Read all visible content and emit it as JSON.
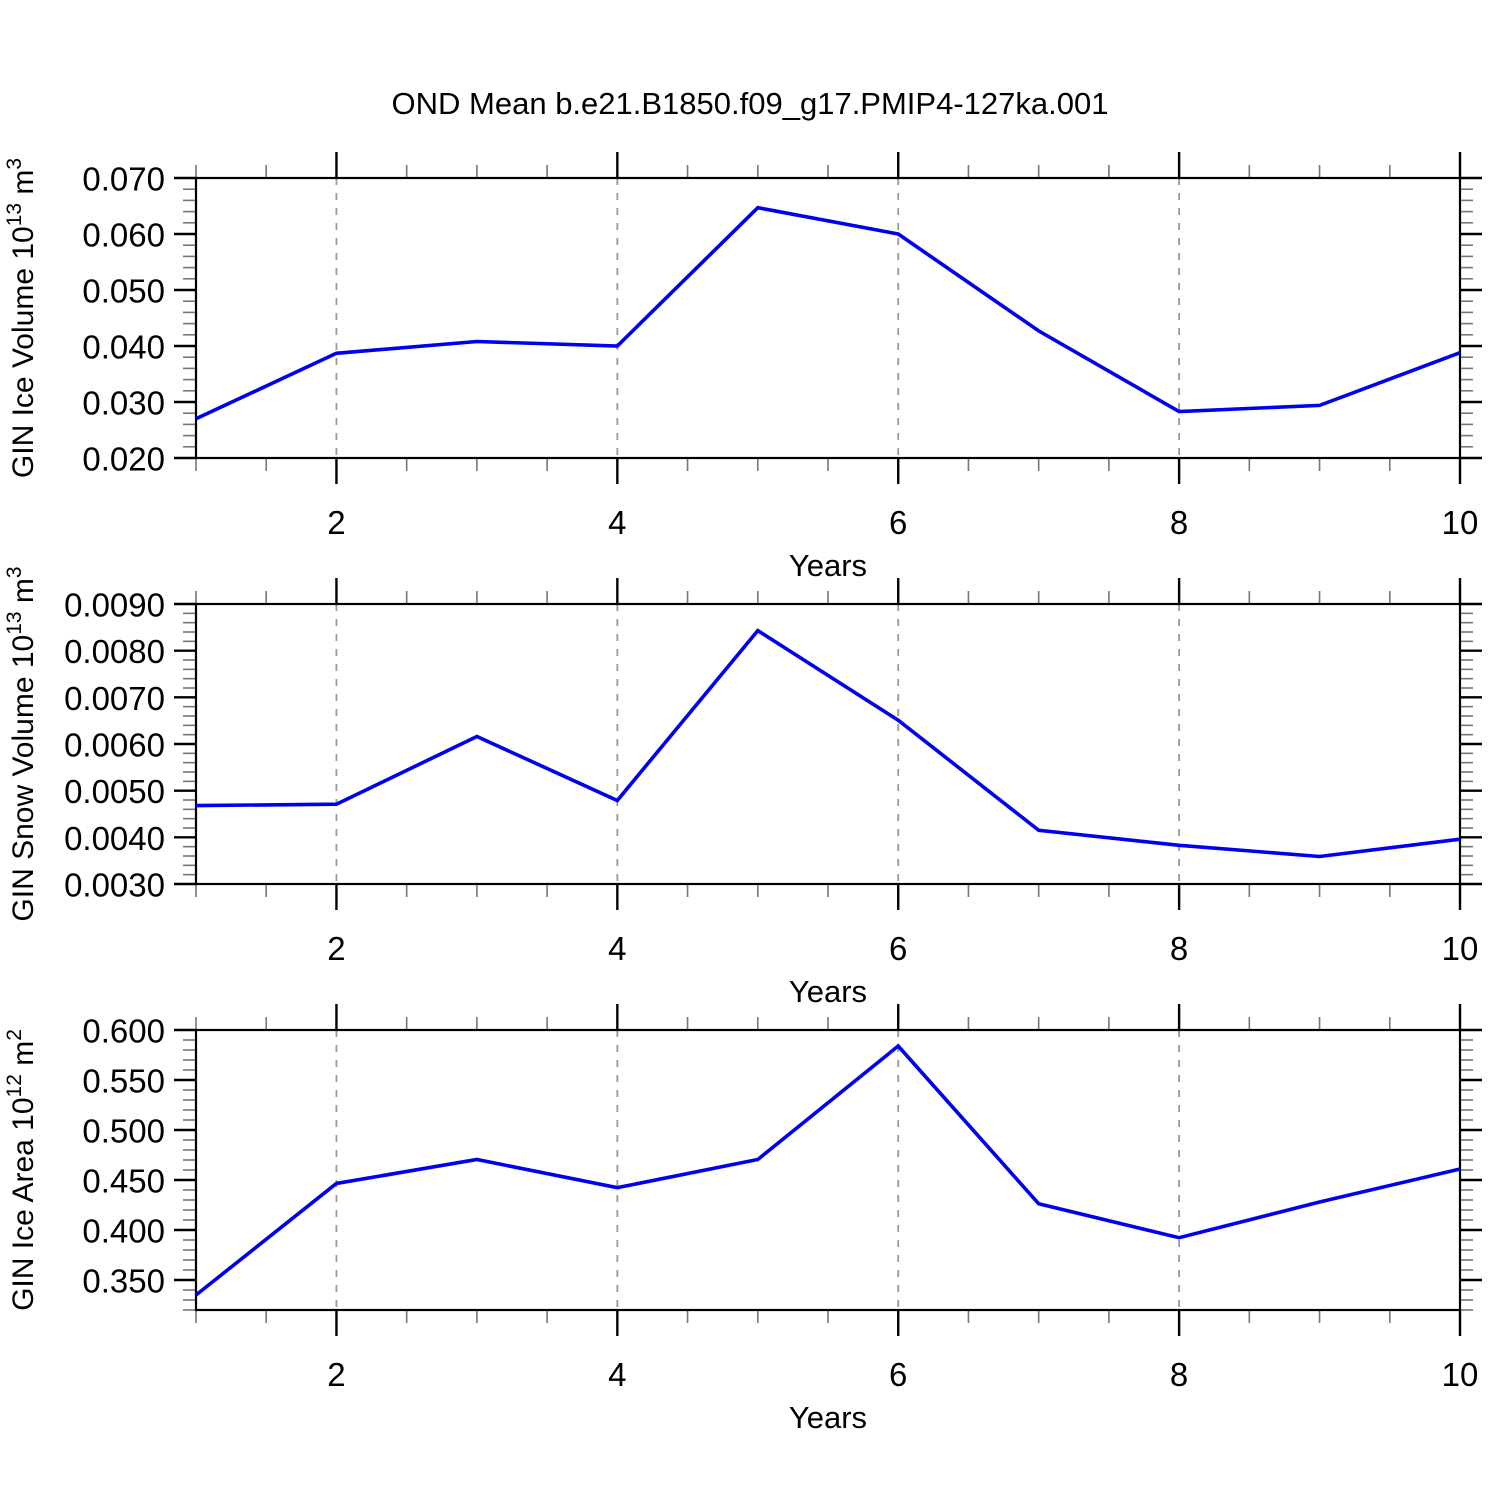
{
  "title": "OND Mean b.e21.B1850.f09_g17.PMIP4-127ka.001",
  "colors": {
    "line": "#0000ee",
    "frame": "#000000",
    "grid": "#999999",
    "minor_tick": "#777777",
    "background": "#ffffff"
  },
  "chart_data": [
    {
      "type": "line",
      "xlabel": "Years",
      "ylabel_segments": [
        {
          "t": "GIN Ice Volume 10"
        },
        {
          "sup": "13"
        },
        {
          "t": " m"
        },
        {
          "sup": "3"
        }
      ],
      "x": [
        1,
        2,
        3,
        4,
        5,
        6,
        7,
        8,
        9,
        10
      ],
      "values": [
        0.027,
        0.0387,
        0.0408,
        0.04,
        0.0647,
        0.06,
        0.0427,
        0.0283,
        0.0294,
        0.0388
      ],
      "xlim": [
        1,
        10
      ],
      "ylim": [
        0.02,
        0.07
      ],
      "yticks": [
        {
          "v": 0.07,
          "label": "0.070"
        },
        {
          "v": 0.06,
          "label": "0.060"
        },
        {
          "v": 0.05,
          "label": "0.050"
        },
        {
          "v": 0.04,
          "label": "0.040"
        },
        {
          "v": 0.03,
          "label": "0.030"
        },
        {
          "v": 0.02,
          "label": "0.020"
        }
      ],
      "y_minor_step": 0.002,
      "xticks_major": [
        {
          "v": 2,
          "label": "2"
        },
        {
          "v": 4,
          "label": "4"
        },
        {
          "v": 6,
          "label": "6"
        },
        {
          "v": 8,
          "label": "8"
        },
        {
          "v": 10,
          "label": "10"
        }
      ],
      "x_minor_step": 0.5,
      "gridlines_x": [
        2,
        4,
        6,
        8
      ],
      "grid_dashed": true
    },
    {
      "type": "line",
      "xlabel": "Years",
      "ylabel_segments": [
        {
          "t": "GIN Snow Volume 10"
        },
        {
          "sup": "13"
        },
        {
          "t": " m"
        },
        {
          "sup": "3"
        }
      ],
      "x": [
        1,
        2,
        3,
        4,
        5,
        6,
        7,
        8,
        9,
        10
      ],
      "values": [
        0.00468,
        0.00471,
        0.00616,
        0.00479,
        0.00843,
        0.00651,
        0.00415,
        0.00383,
        0.00359,
        0.00396
      ],
      "xlim": [
        1,
        10
      ],
      "ylim": [
        0.003,
        0.009
      ],
      "yticks": [
        {
          "v": 0.009,
          "label": "0.0090"
        },
        {
          "v": 0.008,
          "label": "0.0080"
        },
        {
          "v": 0.007,
          "label": "0.0070"
        },
        {
          "v": 0.006,
          "label": "0.0060"
        },
        {
          "v": 0.005,
          "label": "0.0050"
        },
        {
          "v": 0.004,
          "label": "0.0040"
        },
        {
          "v": 0.003,
          "label": "0.0030"
        }
      ],
      "y_minor_step": 0.0002,
      "xticks_major": [
        {
          "v": 2,
          "label": "2"
        },
        {
          "v": 4,
          "label": "4"
        },
        {
          "v": 6,
          "label": "6"
        },
        {
          "v": 8,
          "label": "8"
        },
        {
          "v": 10,
          "label": "10"
        }
      ],
      "x_minor_step": 0.5,
      "gridlines_x": [
        2,
        4,
        6,
        8
      ],
      "grid_dashed": true
    },
    {
      "type": "line",
      "xlabel": "Years",
      "ylabel_segments": [
        {
          "t": "GIN Ice Area 10"
        },
        {
          "sup": "12"
        },
        {
          "t": " m"
        },
        {
          "sup": "2"
        }
      ],
      "x": [
        1,
        2,
        3,
        4,
        5,
        6,
        7,
        8,
        9,
        10
      ],
      "values": [
        0.335,
        0.4465,
        0.4705,
        0.4423,
        0.4705,
        0.584,
        0.4262,
        0.3923,
        0.428,
        0.461
      ],
      "xlim": [
        1,
        10
      ],
      "ylim": [
        0.32,
        0.6
      ],
      "yticks": [
        {
          "v": 0.6,
          "label": "0.600"
        },
        {
          "v": 0.55,
          "label": "0.550"
        },
        {
          "v": 0.5,
          "label": "0.500"
        },
        {
          "v": 0.45,
          "label": "0.450"
        },
        {
          "v": 0.4,
          "label": "0.400"
        },
        {
          "v": 0.35,
          "label": "0.350"
        }
      ],
      "y_minor_step": 0.01,
      "xticks_major": [
        {
          "v": 2,
          "label": "2"
        },
        {
          "v": 4,
          "label": "4"
        },
        {
          "v": 6,
          "label": "6"
        },
        {
          "v": 8,
          "label": "8"
        },
        {
          "v": 10,
          "label": "10"
        }
      ],
      "x_minor_step": 0.5,
      "gridlines_x": [
        2,
        4,
        6,
        8
      ],
      "grid_dashed": true
    }
  ]
}
